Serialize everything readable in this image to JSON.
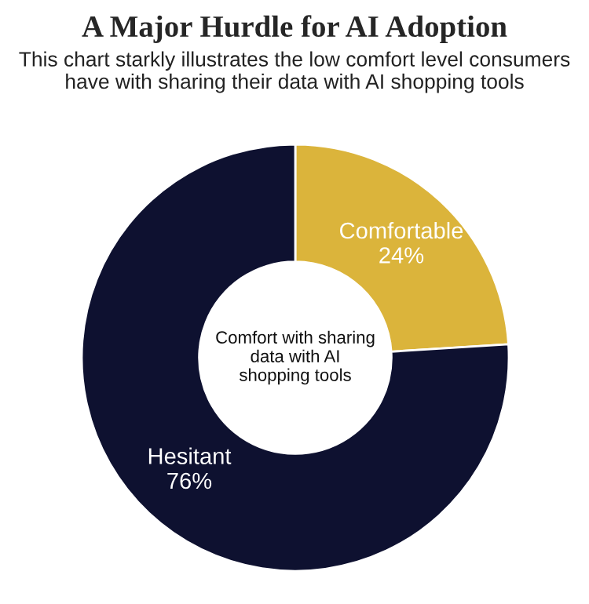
{
  "chart_data": {
    "type": "donut",
    "title": "A Major Hurdle for AI Adoption",
    "subtitle": "This chart starkly illustrates the low comfort level consumers have with sharing their data with AI shopping tools",
    "categories": [
      "Comfortable",
      "Hesitant"
    ],
    "values": [
      24,
      76
    ],
    "value_labels": [
      "24%",
      "76%"
    ],
    "colors": [
      "#dbb43b",
      "#0e1130"
    ],
    "annotations": [
      "Comfort with sharing\ndata with AI\nshopping tools"
    ],
    "legend": false
  }
}
